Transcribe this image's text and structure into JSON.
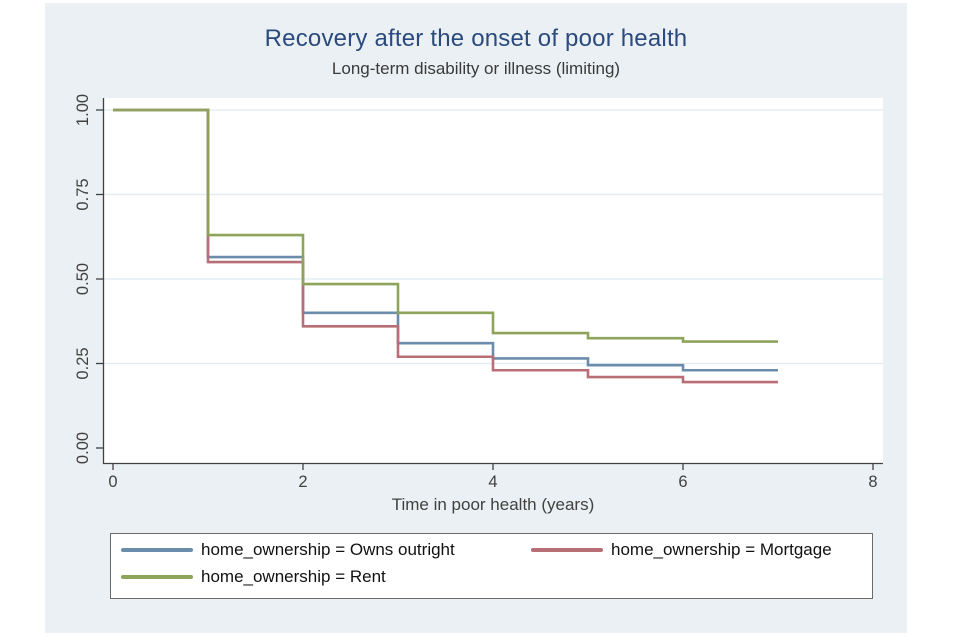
{
  "page": {
    "background": "#ffffff"
  },
  "chart": {
    "background": "#eaf0f3",
    "plot_background": "#ffffff",
    "grid_color": "#e2edf2",
    "axis_color": "#414141",
    "tick_text_color": "#414141",
    "title_color": "#2b4a7e",
    "subtitle_color": "#3a3a3a",
    "legend_border_color": "#6a6a6a",
    "legend_background": "#ffffff"
  },
  "chart_data": {
    "type": "line",
    "subtype": "kaplan-meier-step",
    "title": "Recovery after the onset of poor health",
    "subtitle": "Long-term disability or illness (limiting)",
    "xlabel": "Time in poor health (years)",
    "ylabel": "",
    "xlim": [
      0,
      8
    ],
    "ylim": [
      0,
      1
    ],
    "x_ticks": [
      0,
      2,
      4,
      6,
      8
    ],
    "y_ticks": [
      {
        "value": 0.0,
        "label": "0.00"
      },
      {
        "value": 0.25,
        "label": "0.25"
      },
      {
        "value": 0.5,
        "label": "0.50"
      },
      {
        "value": 0.75,
        "label": "0.75"
      },
      {
        "value": 1.0,
        "label": "1.00"
      }
    ],
    "grid": "horizontal-only",
    "legend_position": "bottom",
    "step_times": [
      0,
      1,
      2,
      3,
      4,
      5,
      6,
      7
    ],
    "series": [
      {
        "name": "home_ownership = Owns outright",
        "color": "#6c8cab",
        "values": [
          1.0,
          0.565,
          0.4,
          0.31,
          0.265,
          0.245,
          0.23
        ]
      },
      {
        "name": "home_ownership = Mortgage",
        "color": "#b86e76",
        "values": [
          1.0,
          0.55,
          0.36,
          0.27,
          0.23,
          0.21,
          0.195
        ]
      },
      {
        "name": "home_ownership = Rent",
        "color": "#8da45a",
        "values": [
          1.0,
          0.63,
          0.485,
          0.4,
          0.34,
          0.325,
          0.315
        ]
      }
    ]
  }
}
